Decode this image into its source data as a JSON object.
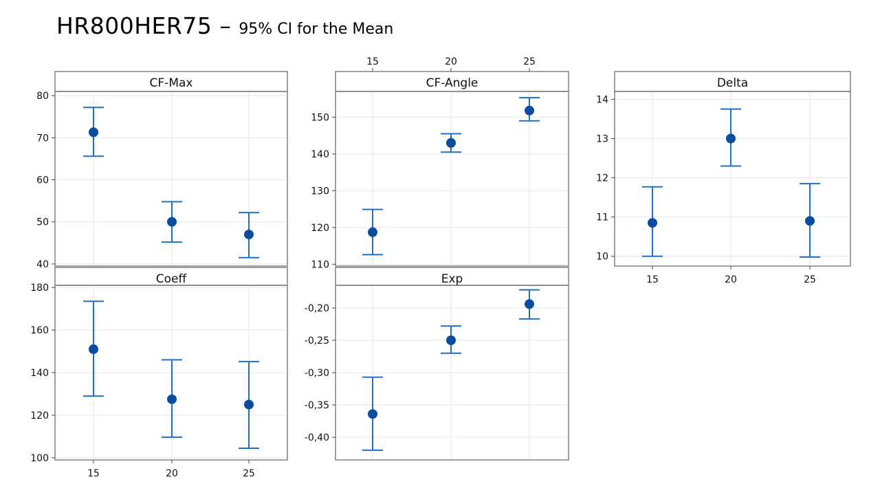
{
  "title": "HR800HER75",
  "dash": " – ",
  "subtitle": "95% CI for the Mean",
  "colors": {
    "ci": "#1f6fc4",
    "point": "#0a4da0",
    "frame": "#808080",
    "grid": "#e6e6e6",
    "strip_bg": "#ffffff"
  },
  "chart_data": [
    {
      "type": "scatter",
      "panel": "CF-Max",
      "title": "CF-Max",
      "categories": [
        "15",
        "20",
        "25"
      ],
      "mean": [
        71.3,
        50.0,
        47.0
      ],
      "lower": [
        65.6,
        45.2,
        41.5
      ],
      "upper": [
        77.2,
        54.8,
        52.2
      ],
      "ylim": [
        39.5,
        81
      ],
      "yticks": [
        40,
        50,
        60,
        70,
        80
      ],
      "ytick_labels": [
        "40",
        "50",
        "60",
        "70",
        "80"
      ]
    },
    {
      "type": "scatter",
      "panel": "CF-Angle",
      "title": "CF-Angle",
      "categories": [
        "15",
        "20",
        "25"
      ],
      "mean": [
        118.7,
        143.0,
        151.8
      ],
      "lower": [
        112.6,
        140.5,
        149.0
      ],
      "upper": [
        124.9,
        145.5,
        155.3
      ],
      "ylim": [
        109.5,
        157
      ],
      "yticks": [
        110,
        120,
        130,
        140,
        150
      ],
      "ytick_labels": [
        "110",
        "120",
        "130",
        "140",
        "150"
      ]
    },
    {
      "type": "scatter",
      "panel": "Delta",
      "title": "Delta",
      "categories": [
        "15",
        "20",
        "25"
      ],
      "mean": [
        10.85,
        13.0,
        10.9
      ],
      "lower": [
        10.0,
        12.3,
        9.98
      ],
      "upper": [
        11.77,
        13.75,
        11.85
      ],
      "ylim": [
        9.75,
        14.2
      ],
      "yticks": [
        10,
        11,
        12,
        13,
        14
      ],
      "ytick_labels": [
        "10",
        "11",
        "12",
        "13",
        "14"
      ]
    },
    {
      "type": "scatter",
      "panel": "Coeff",
      "title": "Coeff",
      "categories": [
        "15",
        "20",
        "25"
      ],
      "mean": [
        151,
        127.5,
        125
      ],
      "lower": [
        129,
        109.7,
        104.5
      ],
      "upper": [
        173.5,
        146,
        145.2
      ],
      "ylim": [
        99,
        181
      ],
      "yticks": [
        100,
        120,
        140,
        160,
        180
      ],
      "ytick_labels": [
        "100",
        "120",
        "140",
        "160",
        "180"
      ]
    },
    {
      "type": "scatter",
      "panel": "Exp",
      "title": "Exp",
      "categories": [
        "15",
        "20",
        "25"
      ],
      "mean": [
        -0.364,
        -0.25,
        -0.194
      ],
      "lower": [
        -0.42,
        -0.27,
        -0.217
      ],
      "upper": [
        -0.307,
        -0.228,
        -0.172
      ],
      "ylim": [
        -0.435,
        -0.165
      ],
      "yticks": [
        -0.4,
        -0.35,
        -0.3,
        -0.25,
        -0.2
      ],
      "ytick_labels": [
        "-0,40",
        "-0,35",
        "-0,30",
        "-0,25",
        "-0,20"
      ]
    }
  ]
}
